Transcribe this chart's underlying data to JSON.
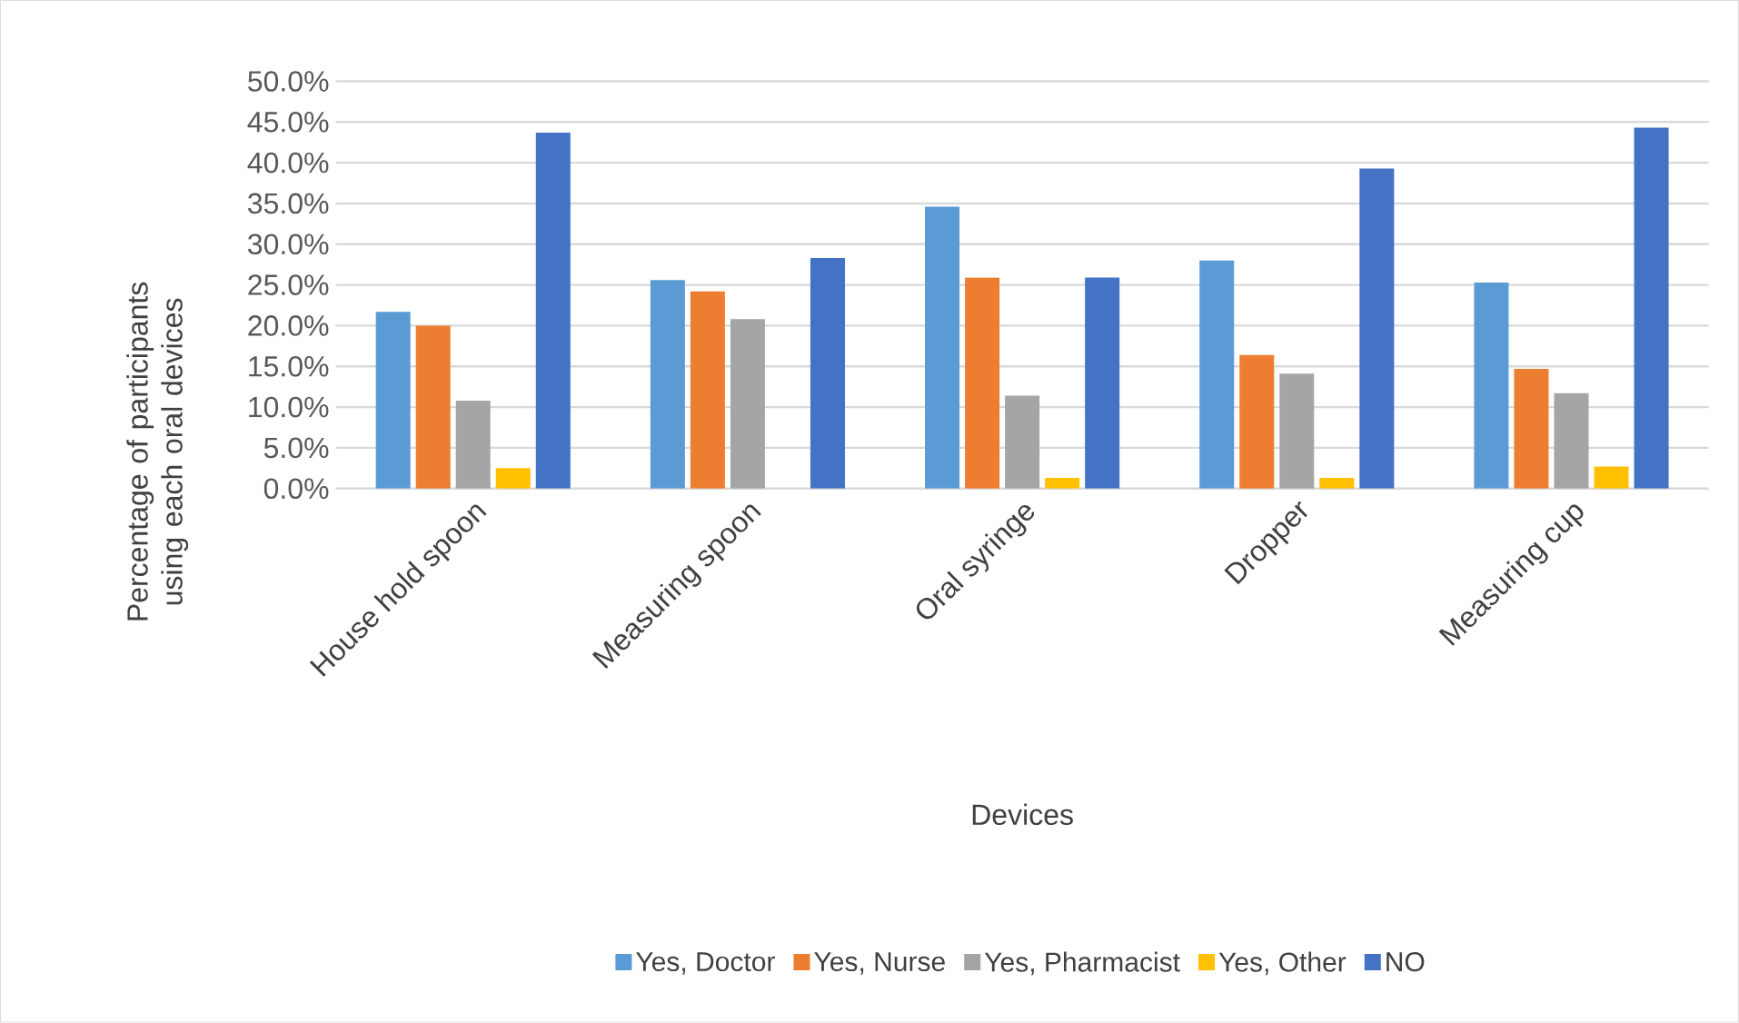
{
  "chart_data": {
    "type": "bar",
    "xlabel": "Devices",
    "ylabel": "Percentage of participants using each oral devices",
    "categories": [
      "House hold spoon",
      "Measuring spoon",
      "Oral syringe",
      "Dropper",
      "Measuring cup"
    ],
    "series": [
      {
        "name": "Yes, Doctor",
        "color": "#5b9bd5",
        "values": [
          21.7,
          25.6,
          34.6,
          28.0,
          25.3
        ]
      },
      {
        "name": "Yes, Nurse",
        "color": "#ed7d31",
        "values": [
          20.0,
          24.2,
          25.9,
          16.4,
          14.7
        ]
      },
      {
        "name": "Yes, Pharmacist",
        "color": "#a5a5a5",
        "values": [
          10.8,
          20.8,
          11.4,
          14.1,
          11.7
        ]
      },
      {
        "name": "Yes, Other",
        "color": "#ffc000",
        "values": [
          2.5,
          0,
          1.3,
          1.3,
          2.7
        ]
      },
      {
        "name": "NO",
        "color": "#4472c4",
        "values": [
          43.7,
          28.3,
          25.9,
          39.3,
          44.3
        ]
      }
    ],
    "ylim": [
      0,
      50
    ],
    "yticks": [
      {
        "value": 0,
        "label": "0.0%"
      },
      {
        "value": 5,
        "label": "5.0%"
      },
      {
        "value": 10,
        "label": "10.0%"
      },
      {
        "value": 15,
        "label": "15.0%"
      },
      {
        "value": 20,
        "label": "20.0%"
      },
      {
        "value": 25,
        "label": "25.0%"
      },
      {
        "value": 30,
        "label": "30.0%"
      },
      {
        "value": 35,
        "label": "35.0%"
      },
      {
        "value": 40,
        "label": "40.0%"
      },
      {
        "value": 45,
        "label": "45.0%"
      },
      {
        "value": 50,
        "label": "50.0%"
      }
    ],
    "grid": "y",
    "legend": "bottom"
  }
}
